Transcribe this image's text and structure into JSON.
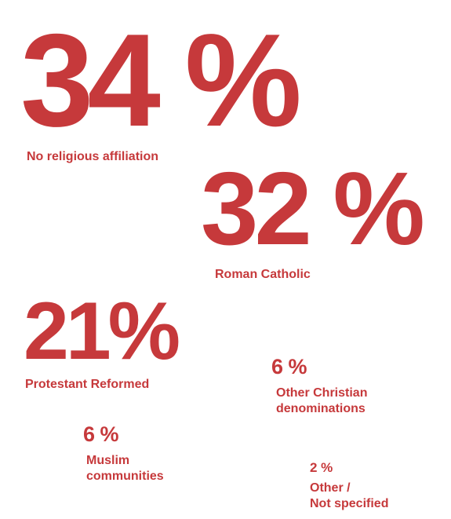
{
  "chart_data": {
    "type": "table",
    "accent_color": "#c6393b",
    "categories": [
      "No religious affiliation",
      "Roman Catholic",
      "Protestant Reformed",
      "Other Christian denominations",
      "Muslim communities",
      "Other / Not specified"
    ],
    "values": [
      34,
      32,
      21,
      6,
      6,
      2
    ],
    "items": [
      {
        "value_text": "34 %",
        "label": "No religious affiliation",
        "label_lines": [
          "No religious affiliation"
        ]
      },
      {
        "value_text": "32 %",
        "label": "Roman Catholic",
        "label_lines": [
          "Roman Catholic"
        ]
      },
      {
        "value_text": "21%",
        "label": "Protestant Reformed",
        "label_lines": [
          "Protestant Reformed"
        ]
      },
      {
        "value_text": "6 %",
        "label": "Other Christian denominations",
        "label_lines": [
          "Other Christian",
          "denominations"
        ]
      },
      {
        "value_text": "6 %",
        "label": "Muslim communities",
        "label_lines": [
          "Muslim",
          "communities"
        ]
      },
      {
        "value_text": "2 %",
        "label": "Other / Not specified",
        "label_lines": [
          "Other /",
          "Not specified"
        ]
      }
    ]
  }
}
